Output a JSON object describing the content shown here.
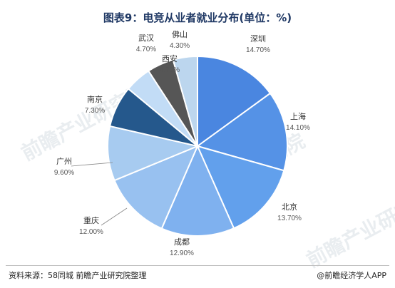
{
  "header": {
    "title": "图表9：电竞从业者就业分布(单位：%)"
  },
  "footer": {
    "source": "资料来源：58同城 前瞻产业研究院整理",
    "credit": "@前瞻经济学人APP"
  },
  "watermark": {
    "text": "前瞻产业研究院"
  },
  "chart_data": {
    "type": "pie",
    "title": "图表9：电竞从业者就业分布(单位：%)",
    "unit": "%",
    "slices": [
      {
        "label": "深圳",
        "value": 14.7,
        "display": "14.70%",
        "color": "#4a86e0"
      },
      {
        "label": "上海",
        "value": 14.1,
        "display": "14.10%",
        "color": "#5592e6"
      },
      {
        "label": "北京",
        "value": 13.7,
        "display": "13.70%",
        "color": "#62a0ec"
      },
      {
        "label": "成都",
        "value": 12.9,
        "display": "12.90%",
        "color": "#7fb1ef"
      },
      {
        "label": "重庆",
        "value": 12.0,
        "display": "12.00%",
        "color": "#98c1f0"
      },
      {
        "label": "广州",
        "value": 9.6,
        "display": "9.60%",
        "color": "#a7cbf0"
      },
      {
        "label": "南京",
        "value": 7.3,
        "display": "7.30%",
        "color": "#25588c"
      },
      {
        "label": "武汉",
        "value": 4.7,
        "display": "4.70%",
        "color": "#c2dcf6"
      },
      {
        "label": "西安",
        "value": 4.7,
        "display": "4.70%",
        "color": "#565656"
      },
      {
        "label": "佛山",
        "value": 4.3,
        "display": "4.30%",
        "color": "#bcd6ee"
      }
    ]
  }
}
